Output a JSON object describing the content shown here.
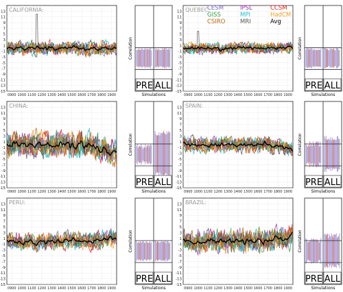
{
  "model_legend": [
    {
      "name": "CESM",
      "color": "#7b68c8"
    },
    {
      "name": "IPSL",
      "color": "#9b2fae"
    },
    {
      "name": "CCSM",
      "color": "#e02020"
    },
    {
      "name": "GISS",
      "color": "#2e9e3e"
    },
    {
      "name": "MPI",
      "color": "#1fc0d0"
    },
    {
      "name": "HadCM",
      "color": "#f0a020"
    },
    {
      "name": "CSIRO",
      "color": "#b8660b"
    },
    {
      "name": "MRI",
      "color": "#555555"
    },
    {
      "name": "Avg",
      "color": "#000000"
    }
  ],
  "common": {
    "y_ticks": [
      13,
      11,
      9,
      7,
      5,
      3,
      1,
      -1,
      -3,
      -5,
      -7,
      -9,
      -11,
      -13,
      -15
    ],
    "x_ticks": [
      "0900",
      "1000",
      "1100",
      "1200",
      "1300",
      "1400",
      "1500",
      "1600",
      "1700",
      "1800",
      "1900"
    ],
    "corr_ylabel": "Correlation",
    "corr_xlabel": "Simulations",
    "corr_pre_label": "PRE",
    "corr_all_label": "ALL"
  },
  "chart_data": [
    {
      "type": "line",
      "region": "CALIFORNIA:",
      "xlim": [
        850,
        1950
      ],
      "ylim": [
        -15,
        15
      ],
      "corr": {
        "ylim": [
          -1,
          1
        ],
        "threshold": 0.4,
        "pre_values_approx": [
          0.3,
          0.4
        ],
        "all_values_approx": [
          0.3,
          0.4
        ]
      }
    },
    {
      "type": "line",
      "region": "QUEBEC:",
      "xlim": [
        850,
        1950
      ],
      "ylim": [
        -15,
        15
      ],
      "corr": {
        "ylim": [
          -1,
          1
        ],
        "threshold": 0.4,
        "pre_values_approx": [
          0.3,
          0.4
        ],
        "all_values_approx": [
          0.3,
          0.4
        ]
      }
    },
    {
      "type": "line",
      "region": "CHINA:",
      "xlim": [
        850,
        1950
      ],
      "ylim": [
        -15,
        15
      ],
      "corr": {
        "ylim": [
          -1,
          1
        ],
        "threshold": 0.4,
        "pre_values_approx": [
          0.2,
          0.4
        ],
        "all_values_approx": [
          0.7,
          0.9
        ]
      }
    },
    {
      "type": "line",
      "region": "SPAIN:",
      "xlim": [
        850,
        1950
      ],
      "ylim": [
        -15,
        15
      ],
      "corr": {
        "ylim": [
          -1,
          1
        ],
        "threshold": 0.4,
        "pre_values_approx": [
          0.3,
          0.5
        ],
        "all_values_approx": [
          0.5,
          0.7
        ]
      }
    },
    {
      "type": "line",
      "region": "PERU:",
      "xlim": [
        850,
        1950
      ],
      "ylim": [
        -15,
        15
      ],
      "corr": {
        "ylim": [
          -1,
          1
        ],
        "threshold": 0.4,
        "pre_values_approx": [
          0.3,
          0.4
        ],
        "all_values_approx": [
          0.3,
          0.4
        ]
      }
    },
    {
      "type": "line",
      "region": "BRAZIL:",
      "xlim": [
        850,
        1950
      ],
      "ylim": [
        -15,
        15
      ],
      "corr": {
        "ylim": [
          -1,
          1
        ],
        "threshold": 0.4,
        "pre_values_approx": [
          0.3,
          0.5
        ],
        "all_values_approx": [
          0.5,
          0.7
        ]
      }
    }
  ]
}
